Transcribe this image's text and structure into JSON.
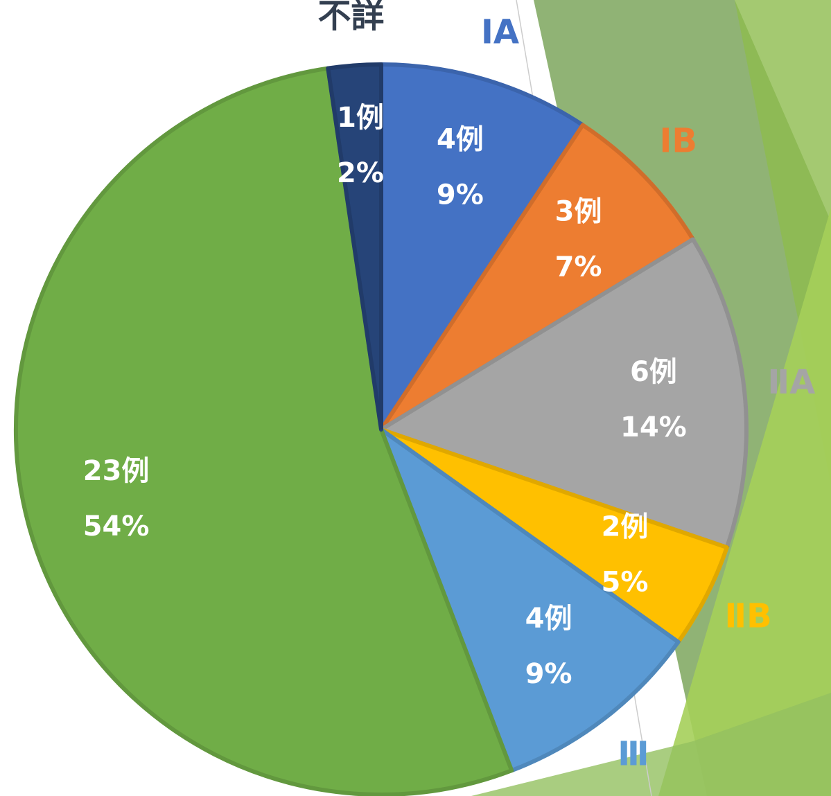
{
  "chart_data": {
    "type": "pie",
    "categories": [
      "ⅠA",
      "ⅠB",
      "ⅡA",
      "ⅡB",
      "Ⅲ",
      null,
      "不詳"
    ],
    "values": [
      4,
      3,
      6,
      2,
      4,
      23,
      1
    ],
    "value_labels": [
      "4例",
      "3例",
      "6例",
      "2例",
      "4例",
      "23例",
      "1例"
    ],
    "percentages": [
      9,
      7,
      14,
      5,
      9,
      54,
      2
    ],
    "percentage_labels": [
      "9%",
      "7%",
      "14%",
      "5%",
      "9%",
      "54%",
      "2%"
    ],
    "colors": [
      "#4472c4",
      "#ed7d31",
      "#a5a5a5",
      "#ffc000",
      "#5b9bd5",
      "#70ad47",
      "#264478"
    ]
  }
}
